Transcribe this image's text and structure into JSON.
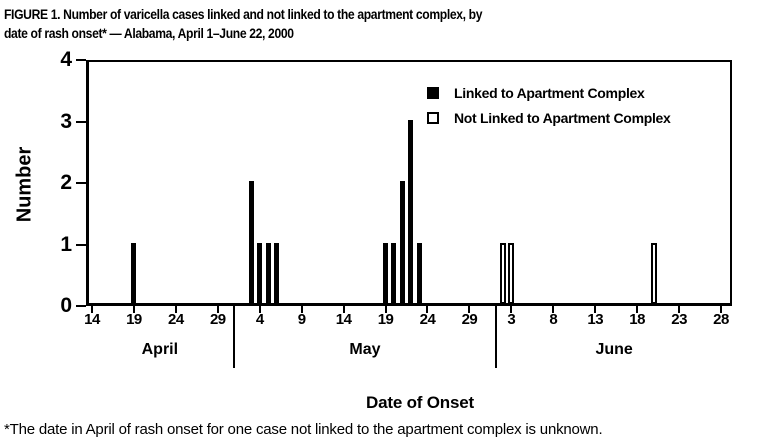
{
  "figure": {
    "title_line1": "FIGURE 1. Number of varicella cases linked and not linked to the apartment complex, by",
    "title_line2": "date of rash onset* — Alabama, April 1–June 22, 2000",
    "footnote": "*The date in April of rash onset for one case not linked to the apartment complex is unknown."
  },
  "chart_data": {
    "type": "bar",
    "title": "FIGURE 1. Number of varicella cases linked and not linked to the apartment complex, by date of rash onset* — Alabama, April 1–June 22, 2000",
    "xlabel": "Date of Onset",
    "ylabel": "Number",
    "ylim": [
      0,
      4
    ],
    "yticks": [
      0,
      1,
      2,
      3,
      4
    ],
    "grid": "off",
    "bar_color": "#000000",
    "background": "#ffffff",
    "x_axis": {
      "months": [
        {
          "name": "April",
          "tick_days": [
            14,
            19,
            24,
            29
          ]
        },
        {
          "name": "May",
          "tick_days": [
            4,
            9,
            14,
            19,
            24,
            29
          ]
        },
        {
          "name": "June",
          "tick_days": [
            3,
            8,
            13,
            18,
            23,
            28
          ]
        }
      ]
    },
    "legend": {
      "position": "top-right-inside",
      "items": [
        "Linked to Apartment Complex",
        "Not Linked to Apartment Complex"
      ]
    },
    "series": [
      {
        "name": "Linked to Apartment Complex",
        "style": "filled",
        "color": "#000000",
        "points": [
          {
            "month": "April",
            "day": 19,
            "value": 1
          },
          {
            "month": "May",
            "day": 3,
            "value": 2
          },
          {
            "month": "May",
            "day": 4,
            "value": 1
          },
          {
            "month": "May",
            "day": 5,
            "value": 1
          },
          {
            "month": "May",
            "day": 6,
            "value": 1
          },
          {
            "month": "May",
            "day": 19,
            "value": 1
          },
          {
            "month": "May",
            "day": 20,
            "value": 1
          },
          {
            "month": "May",
            "day": 21,
            "value": 2
          },
          {
            "month": "May",
            "day": 22,
            "value": 3
          },
          {
            "month": "May",
            "day": 23,
            "value": 1
          }
        ]
      },
      {
        "name": "Not Linked to Apartment Complex",
        "style": "open",
        "color": "#ffffff",
        "border_color": "#000000",
        "points": [
          {
            "month": "June",
            "day": 2,
            "value": 1
          },
          {
            "month": "June",
            "day": 3,
            "value": 1
          },
          {
            "month": "June",
            "day": 20,
            "value": 1
          }
        ]
      }
    ]
  }
}
